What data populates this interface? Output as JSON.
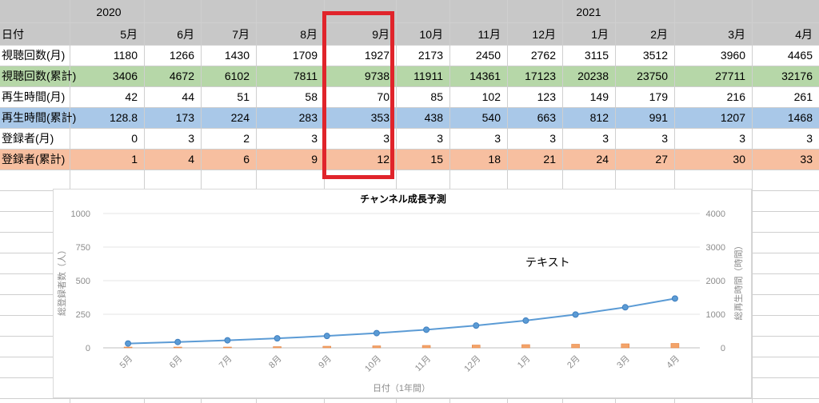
{
  "sheet": {
    "years": {
      "y2020": "2020",
      "y2021": "2021"
    },
    "row_labels": [
      "日付",
      "視聴回数(月)",
      "視聴回数(累計)",
      "再生時間(月)",
      "再生時間(累計)",
      "登録者(月)",
      "登録者(累計)"
    ],
    "months": [
      "5月",
      "6月",
      "7月",
      "8月",
      "9月",
      "10月",
      "11月",
      "12月",
      "1月",
      "2月",
      "3月",
      "4月"
    ],
    "views_month": [
      "1180",
      "1266",
      "1430",
      "1709",
      "1927",
      "2173",
      "2450",
      "2762",
      "3115",
      "3512",
      "3960",
      "4465"
    ],
    "views_cumulative": [
      "3406",
      "4672",
      "6102",
      "7811",
      "9738",
      "11911",
      "14361",
      "17123",
      "20238",
      "23750",
      "27711",
      "32176"
    ],
    "watch_month": [
      "42",
      "44",
      "51",
      "58",
      "70",
      "85",
      "102",
      "123",
      "149",
      "179",
      "216",
      "261"
    ],
    "watch_cumulative": [
      "128.8",
      "173",
      "224",
      "283",
      "353",
      "438",
      "540",
      "663",
      "812",
      "991",
      "1207",
      "1468"
    ],
    "subs_month": [
      "0",
      "3",
      "2",
      "3",
      "3",
      "3",
      "3",
      "3",
      "3",
      "3",
      "3",
      "3"
    ],
    "subs_cumulative": [
      "1",
      "4",
      "6",
      "9",
      "12",
      "15",
      "18",
      "21",
      "24",
      "27",
      "30",
      "33"
    ],
    "row_colors": {
      "header": "#c8c8c8",
      "views_cumulative": "#b6d7a8",
      "watch_cumulative": "#a9c8e8",
      "subs_cumulative": "#f7bfa0"
    }
  },
  "highlight": {
    "color": "#e0242b",
    "column": "9月"
  },
  "chart_data": {
    "type": "bar",
    "title": "チャンネル成長予測",
    "xlabel": "日付（1年間）",
    "ylabel": "総登録者数（人）",
    "y2label": "総再生時間（時間）",
    "annotation": "テキスト",
    "categories": [
      "5月",
      "6月",
      "7月",
      "8月",
      "9月",
      "10月",
      "11月",
      "12月",
      "1月",
      "2月",
      "3月",
      "4月"
    ],
    "ylim": [
      0,
      1000
    ],
    "y2lim": [
      0,
      4000
    ],
    "yticks": [
      "0",
      "250",
      "500",
      "750",
      "1000"
    ],
    "y2ticks": [
      "0",
      "1000",
      "2000",
      "3000",
      "4000"
    ],
    "series": [
      {
        "kind": "bar",
        "axis": "left",
        "color": "#f4a46a",
        "values": [
          1,
          4,
          6,
          9,
          12,
          15,
          18,
          21,
          24,
          27,
          30,
          33
        ]
      },
      {
        "kind": "line",
        "axis": "right",
        "color": "#5b9bd5",
        "values": [
          128.8,
          173,
          224,
          283,
          353,
          438,
          540,
          663,
          812,
          991,
          1207,
          1468
        ]
      }
    ]
  }
}
